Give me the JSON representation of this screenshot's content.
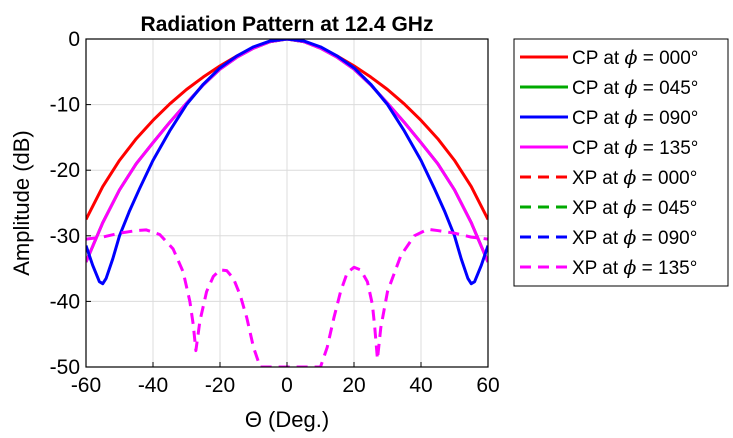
{
  "chart_data": {
    "type": "line",
    "title": "Radiation Pattern at 12.4 GHz",
    "xlabel": "Θ  (Deg.)",
    "ylabel": "Amplitude (dB)",
    "xlim": [
      -60,
      60
    ],
    "ylim": [
      -50,
      0
    ],
    "xticks": [
      -60,
      -40,
      -20,
      0,
      20,
      40,
      60
    ],
    "yticks": [
      0,
      -10,
      -20,
      -30,
      -40,
      -50
    ],
    "xtick_labels": [
      "-60",
      "-40",
      "-20",
      "0",
      "20",
      "40",
      "60"
    ],
    "ytick_labels": [
      "0",
      "-10",
      "-20",
      "-30",
      "-40",
      "-50"
    ],
    "grid": true,
    "legend_position": "outside-right",
    "series": [
      {
        "name": "CP at ϕ = 000°",
        "prefix": "CP",
        "angle": "000°",
        "color": "#ff0000",
        "dash": "solid",
        "x": [
          -60,
          -55,
          -50,
          -45,
          -40,
          -35,
          -30,
          -25,
          -20,
          -15,
          -10,
          -5,
          0,
          5,
          10,
          15,
          20,
          25,
          30,
          35,
          40,
          45,
          50,
          55,
          60
        ],
        "y": [
          -27.5,
          -22.5,
          -18.5,
          -15.2,
          -12.4,
          -9.9,
          -7.7,
          -5.8,
          -4.1,
          -2.6,
          -1.3,
          -0.4,
          0,
          -0.4,
          -1.3,
          -2.6,
          -4.1,
          -5.8,
          -7.7,
          -9.9,
          -12.4,
          -15.2,
          -18.5,
          -22.5,
          -27.5
        ]
      },
      {
        "name": "CP at ϕ = 045°",
        "prefix": "CP",
        "angle": "045°",
        "color": "#00aa00",
        "dash": "solid",
        "x": [
          -60,
          -55,
          -50,
          -45,
          -40,
          -35,
          -30,
          -25,
          -20,
          -15,
          -10,
          -5,
          0,
          5,
          10,
          15,
          20,
          25,
          30,
          35,
          40,
          45,
          50,
          55,
          60
        ],
        "y": [
          -34.0,
          -28.0,
          -23.0,
          -19.0,
          -15.8,
          -12.7,
          -9.8,
          -7.0,
          -4.6,
          -2.8,
          -1.4,
          -0.4,
          0,
          -0.4,
          -1.4,
          -2.8,
          -4.6,
          -7.0,
          -9.8,
          -12.7,
          -15.8,
          -19.0,
          -23.0,
          -28.0,
          -34.0
        ]
      },
      {
        "name": "CP at ϕ = 090°",
        "prefix": "CP",
        "angle": "090°",
        "color": "#0000ff",
        "dash": "solid",
        "x": [
          -60,
          -58,
          -56,
          -55,
          -54,
          -52,
          -50,
          -47,
          -44,
          -40,
          -35,
          -30,
          -25,
          -20,
          -15,
          -10,
          -5,
          0,
          5,
          10,
          15,
          20,
          25,
          30,
          35,
          40,
          44,
          47,
          50,
          52,
          54,
          55,
          56,
          58,
          60
        ],
        "y": [
          -31.5,
          -34.5,
          -37.0,
          -37.3,
          -36.5,
          -33.5,
          -30.0,
          -26.2,
          -22.8,
          -18.5,
          -14.0,
          -10.0,
          -6.9,
          -4.4,
          -2.6,
          -1.2,
          -0.3,
          0,
          -0.3,
          -1.2,
          -2.6,
          -4.4,
          -6.9,
          -10.0,
          -14.0,
          -18.5,
          -22.8,
          -26.2,
          -30.0,
          -33.5,
          -36.5,
          -37.3,
          -37.0,
          -34.5,
          -31.5
        ]
      },
      {
        "name": "CP at ϕ = 135°",
        "prefix": "CP",
        "angle": "135°",
        "color": "#ff00ff",
        "dash": "solid",
        "x": [
          -60,
          -55,
          -50,
          -45,
          -40,
          -35,
          -30,
          -25,
          -20,
          -15,
          -10,
          -5,
          0,
          5,
          10,
          15,
          20,
          25,
          30,
          35,
          40,
          45,
          50,
          55,
          60
        ],
        "y": [
          -34.0,
          -28.0,
          -23.0,
          -19.0,
          -15.8,
          -12.7,
          -9.8,
          -7.0,
          -4.6,
          -2.8,
          -1.4,
          -0.4,
          0,
          -0.4,
          -1.4,
          -2.8,
          -4.6,
          -7.0,
          -9.8,
          -12.7,
          -15.8,
          -19.0,
          -23.0,
          -28.0,
          -34.0
        ]
      },
      {
        "name": "XP at ϕ = 000°",
        "prefix": "XP",
        "angle": "000°",
        "color": "#ff0000",
        "dash": "dashed",
        "x": [],
        "y": []
      },
      {
        "name": "XP at ϕ = 045°",
        "prefix": "XP",
        "angle": "045°",
        "color": "#00aa00",
        "dash": "dashed",
        "x": [],
        "y": []
      },
      {
        "name": "XP at ϕ = 090°",
        "prefix": "XP",
        "angle": "090°",
        "color": "#0000ff",
        "dash": "dashed",
        "x": [],
        "y": []
      },
      {
        "name": "XP at ϕ = 135°",
        "prefix": "XP",
        "angle": "135°",
        "color": "#ff00ff",
        "dash": "dashed",
        "x": [
          -60,
          -55,
          -50,
          -45,
          -42,
          -38,
          -34,
          -31,
          -29,
          -28,
          -27.2,
          -26,
          -24,
          -22,
          -20,
          -18,
          -16,
          -14,
          -12,
          -10,
          -8,
          -6,
          -5,
          -4.5,
          -4.5,
          -4,
          -2,
          0,
          2,
          4,
          4.5,
          5,
          6,
          8,
          10,
          12,
          14,
          16,
          18,
          20,
          22,
          24,
          25.5,
          26.2,
          27,
          28,
          30,
          34,
          38,
          42,
          45,
          50,
          55,
          60
        ],
        "y": [
          -30.5,
          -30.2,
          -29.6,
          -29.2,
          -29.1,
          -29.8,
          -32.0,
          -35.5,
          -40.0,
          -43.5,
          -47.5,
          -43.0,
          -38.5,
          -36.2,
          -35.2,
          -35.3,
          -36.5,
          -39.0,
          -42.5,
          -47.0,
          -50.0,
          -50.0,
          -50.0,
          -50.0,
          -50.0,
          -50.0,
          -50.0,
          -50.0,
          -50.0,
          -50.0,
          -50.0,
          -50.0,
          -50.0,
          -50.0,
          -50.0,
          -47.0,
          -42.5,
          -38.5,
          -35.6,
          -34.8,
          -35.2,
          -37.0,
          -40.5,
          -44.0,
          -48.8,
          -44.0,
          -38.5,
          -33.0,
          -30.0,
          -29.0,
          -29.2,
          -29.6,
          -30.2,
          -30.5
        ]
      }
    ]
  },
  "colors": {
    "background": "#ffffff",
    "grid": "#dcdcdc",
    "axis": "#000000"
  }
}
